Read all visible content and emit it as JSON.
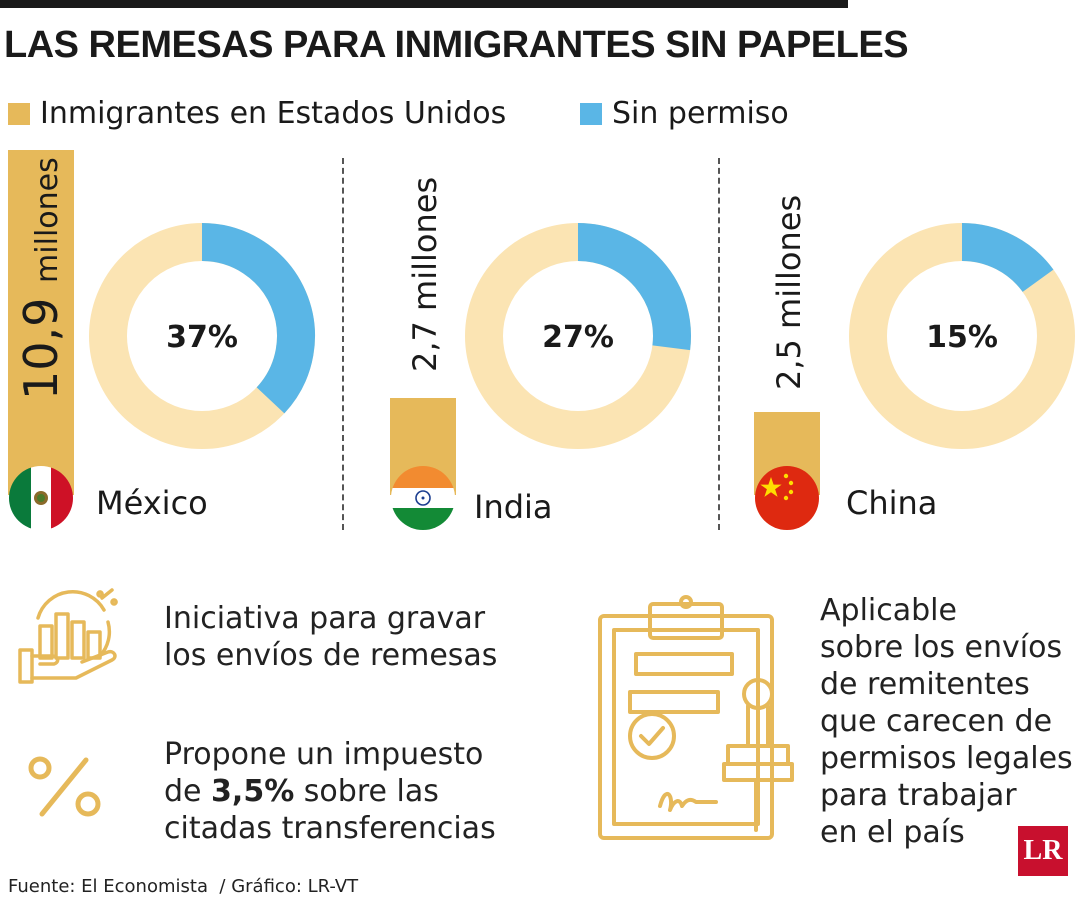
{
  "title": "LAS REMESAS PARA INMIGRANTES SIN PAPELES",
  "legend": {
    "immigrants": {
      "label": "Inmigrantes en Estados Unidos",
      "color": "#e6b95a"
    },
    "undocumented": {
      "label": "Sin permiso",
      "color": "#5ab6e6"
    }
  },
  "ring_base_color": "#fbe4b3",
  "chart_data": {
    "type": "bar",
    "categories": [
      "México",
      "India",
      "China"
    ],
    "series": [
      {
        "name": "Inmigrantes en Estados Unidos",
        "values": [
          10.9,
          2.7,
          2.5
        ],
        "labels": [
          "10,9",
          "2,7",
          "2,5"
        ],
        "unit": "millones"
      },
      {
        "name": "Sin permiso",
        "values": [
          37,
          27,
          15
        ],
        "labels": [
          "37%",
          "27%",
          "15%"
        ],
        "unit": "%"
      }
    ]
  },
  "countries": [
    {
      "name": "México",
      "value_label": "10,9",
      "unit": "millones",
      "pct": 37,
      "pct_label": "37%",
      "flag": "mexico-flag"
    },
    {
      "name": "India",
      "value_label": "2,7",
      "unit": "millones",
      "pct": 27,
      "pct_label": "27%",
      "flag": "india-flag"
    },
    {
      "name": "China",
      "value_label": "2,5",
      "unit": "millones",
      "pct": 15,
      "pct_label": "15%",
      "flag": "china-flag"
    }
  ],
  "info": {
    "initiative": {
      "line1": "Iniciativa para gravar",
      "line2": "los envíos de remesas",
      "icon": "money-hand-chart-icon"
    },
    "tax": {
      "line1": "Propone un impuesto",
      "line2_pre": "de ",
      "line2_bold": "3,5%",
      "line2_post": " sobre las",
      "line3": "citadas transferencias",
      "icon": "percent-icon"
    },
    "applicable": {
      "lines": [
        "Aplicable",
        "sobre los envíos",
        "de remitentes",
        "que carecen de",
        "permisos legales",
        "para trabajar",
        "en el país"
      ],
      "icon": "clipboard-stamp-icon"
    }
  },
  "footer": "Fuente: El Economista  / Gráfico: LR-VT",
  "logo": "LR"
}
